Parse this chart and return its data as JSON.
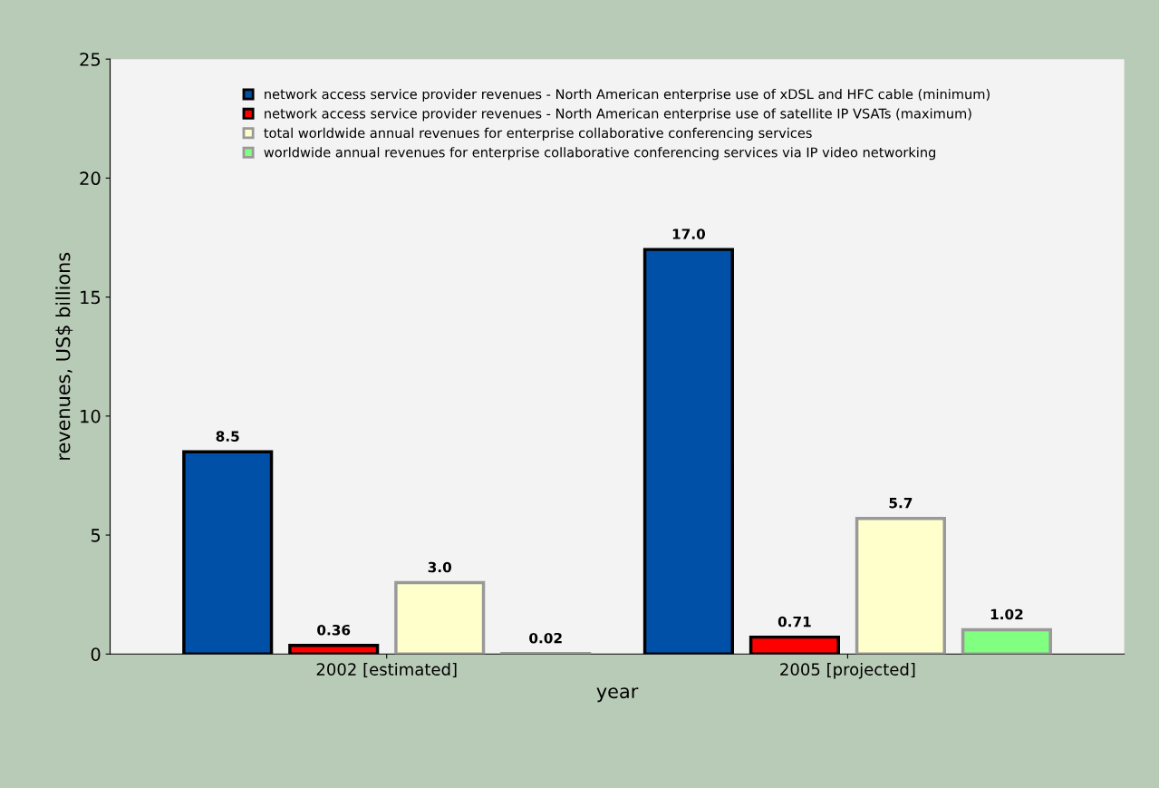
{
  "chart_data": {
    "type": "bar",
    "xlabel": "year",
    "ylabel": "revenues, US$ billions",
    "categories": [
      "2002 [estimated]",
      "2005 [projected]"
    ],
    "series": [
      {
        "name": "network access service provider revenues - North American enterprise use of xDSL and HFC cable (minimum)",
        "color": "#0050a8",
        "values": [
          8.5,
          17.0
        ],
        "value_labels": [
          "8.5",
          "17.0"
        ]
      },
      {
        "name": "network access service provider revenues - North American enterprise use of satellite IP VSATs (maximum)",
        "color": "#ff0000",
        "values": [
          0.36,
          0.71
        ],
        "value_labels": [
          "0.36",
          "0.71"
        ]
      },
      {
        "name": "total worldwide annual revenues for enterprise collaborative conferencing services",
        "color": "#ffffcc",
        "values": [
          3.0,
          5.7
        ],
        "value_labels": [
          "3.0",
          "5.7"
        ]
      },
      {
        "name": "worldwide annual revenues for enterprise collaborative conferencing services via IP video networking",
        "color": "#80ff80",
        "values": [
          0.02,
          1.02
        ],
        "value_labels": [
          "0.02",
          "1.02"
        ]
      }
    ],
    "ylim": [
      0,
      25
    ],
    "yticks": [
      0,
      5,
      10,
      15,
      20,
      25
    ],
    "grid": false,
    "legend": "top"
  }
}
